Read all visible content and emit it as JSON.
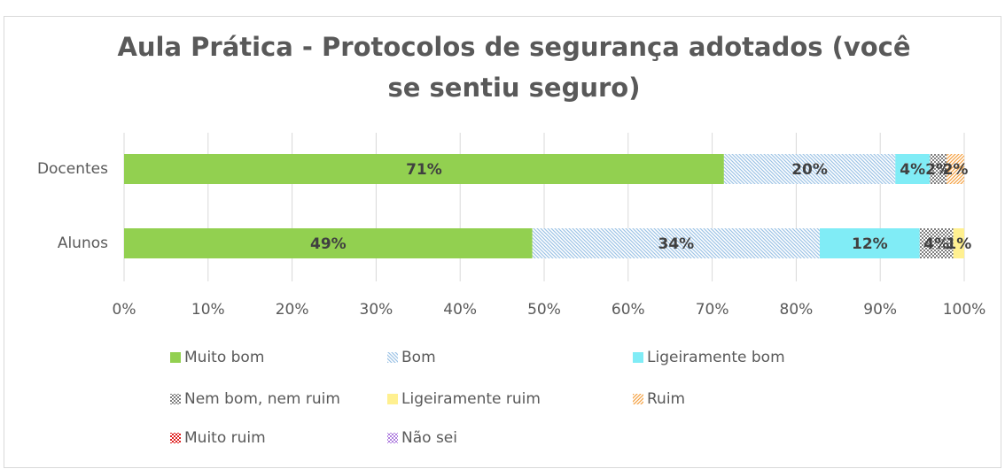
{
  "chart_data": {
    "type": "stacked_barh",
    "title": "Aula Prática  - Protocolos de segurança adotados (você se sentiu seguro)",
    "categories": [
      "Docentes",
      "Alunos"
    ],
    "series": [
      {
        "name": "Muito bom",
        "color": "#92d050",
        "values": [
          71.4,
          48.6
        ],
        "value_labels": [
          "71%",
          "49%"
        ]
      },
      {
        "name": "Bom",
        "color": "#9dc3e6",
        "values": [
          20.4,
          34.2
        ],
        "value_labels": [
          "20%",
          "34%"
        ]
      },
      {
        "name": "Ligeiramente bom",
        "color": "#33e0f0",
        "values": [
          4.1,
          11.9
        ],
        "value_labels": [
          "4%",
          "12%"
        ]
      },
      {
        "name": "Nem bom, nem ruim",
        "color": "#7f7f7f",
        "values": [
          2.0,
          4.0
        ],
        "value_labels": [
          "2%",
          "4%"
        ]
      },
      {
        "name": "Ligeiramente ruim",
        "color": "#ffe84d",
        "values": [
          0,
          1.3
        ],
        "value_labels": [
          null,
          "1%"
        ]
      },
      {
        "name": "Ruim",
        "color": "#f4a040",
        "values": [
          2.1,
          0
        ],
        "value_labels": [
          "2%",
          null
        ]
      },
      {
        "name": "Muito ruim",
        "color": "#e02020",
        "values": [
          0,
          0
        ],
        "value_labels": [
          null,
          null
        ]
      },
      {
        "name": "Não sei",
        "color": "#b080e0",
        "values": [
          0,
          0
        ],
        "value_labels": [
          null,
          null
        ]
      }
    ],
    "xlim": [
      0,
      100
    ],
    "xticks": [
      {
        "value": 0,
        "label": "0%"
      },
      {
        "value": 10,
        "label": "10%"
      },
      {
        "value": 20,
        "label": "20%"
      },
      {
        "value": 30,
        "label": "30%"
      },
      {
        "value": 40,
        "label": "40%"
      },
      {
        "value": 50,
        "label": "50%"
      },
      {
        "value": 60,
        "label": "60%"
      },
      {
        "value": 70,
        "label": "70%"
      },
      {
        "value": 80,
        "label": "80%"
      },
      {
        "value": 90,
        "label": "90%"
      },
      {
        "value": 100,
        "label": "100%"
      }
    ],
    "grid": true
  }
}
